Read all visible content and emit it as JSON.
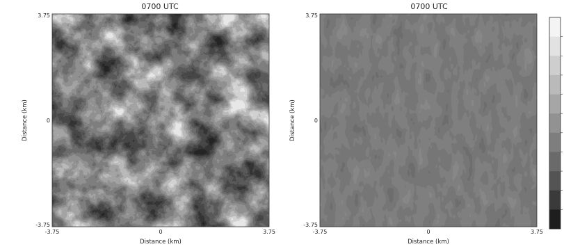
{
  "chart_data": [
    {
      "type": "heatmap",
      "title": "0700 UTC",
      "xlabel": "Distance (km)",
      "ylabel": "Distance (km)",
      "xlim": [
        -3.75,
        3.75
      ],
      "ylim": [
        -3.75,
        3.75
      ],
      "x_tick_labels": [
        "-3.75",
        "0",
        "3.75"
      ],
      "y_tick_labels": [
        "3.75",
        "0",
        "-3.75"
      ],
      "field": "strong spatial variability, grey-shade contours",
      "colormap": [
        "#1e1e1e",
        "#3a3a3a",
        "#545454",
        "#6a6a6a",
        "#7e7e7e",
        "#929292",
        "#a6a6a6",
        "#bababa",
        "#cecece",
        "#e2e2e2",
        "#f4f4f4"
      ]
    },
    {
      "type": "heatmap",
      "title": "0700 UTC",
      "xlabel": "Distance (km)",
      "ylabel": "Distance (km)",
      "xlim": [
        -3.75,
        3.75
      ],
      "ylim": [
        -3.75,
        3.75
      ],
      "x_tick_labels": [
        "-3.75",
        "0",
        "3.75"
      ],
      "y_tick_labels": [
        "3.75",
        "0",
        "-3.75"
      ],
      "field": "nearly uniform mid-grey with weak streaks",
      "colormap": [
        "#1e1e1e",
        "#3a3a3a",
        "#545454",
        "#6a6a6a",
        "#7e7e7e",
        "#929292",
        "#a6a6a6",
        "#bababa",
        "#cecece",
        "#e2e2e2",
        "#f4f4f4"
      ]
    }
  ],
  "colorbar": {
    "levels": 11,
    "colors": [
      "#f4f4f4",
      "#e2e2e2",
      "#cecece",
      "#bababa",
      "#a6a6a6",
      "#929292",
      "#7e7e7e",
      "#6a6a6a",
      "#545454",
      "#3a3a3a",
      "#1e1e1e"
    ]
  }
}
